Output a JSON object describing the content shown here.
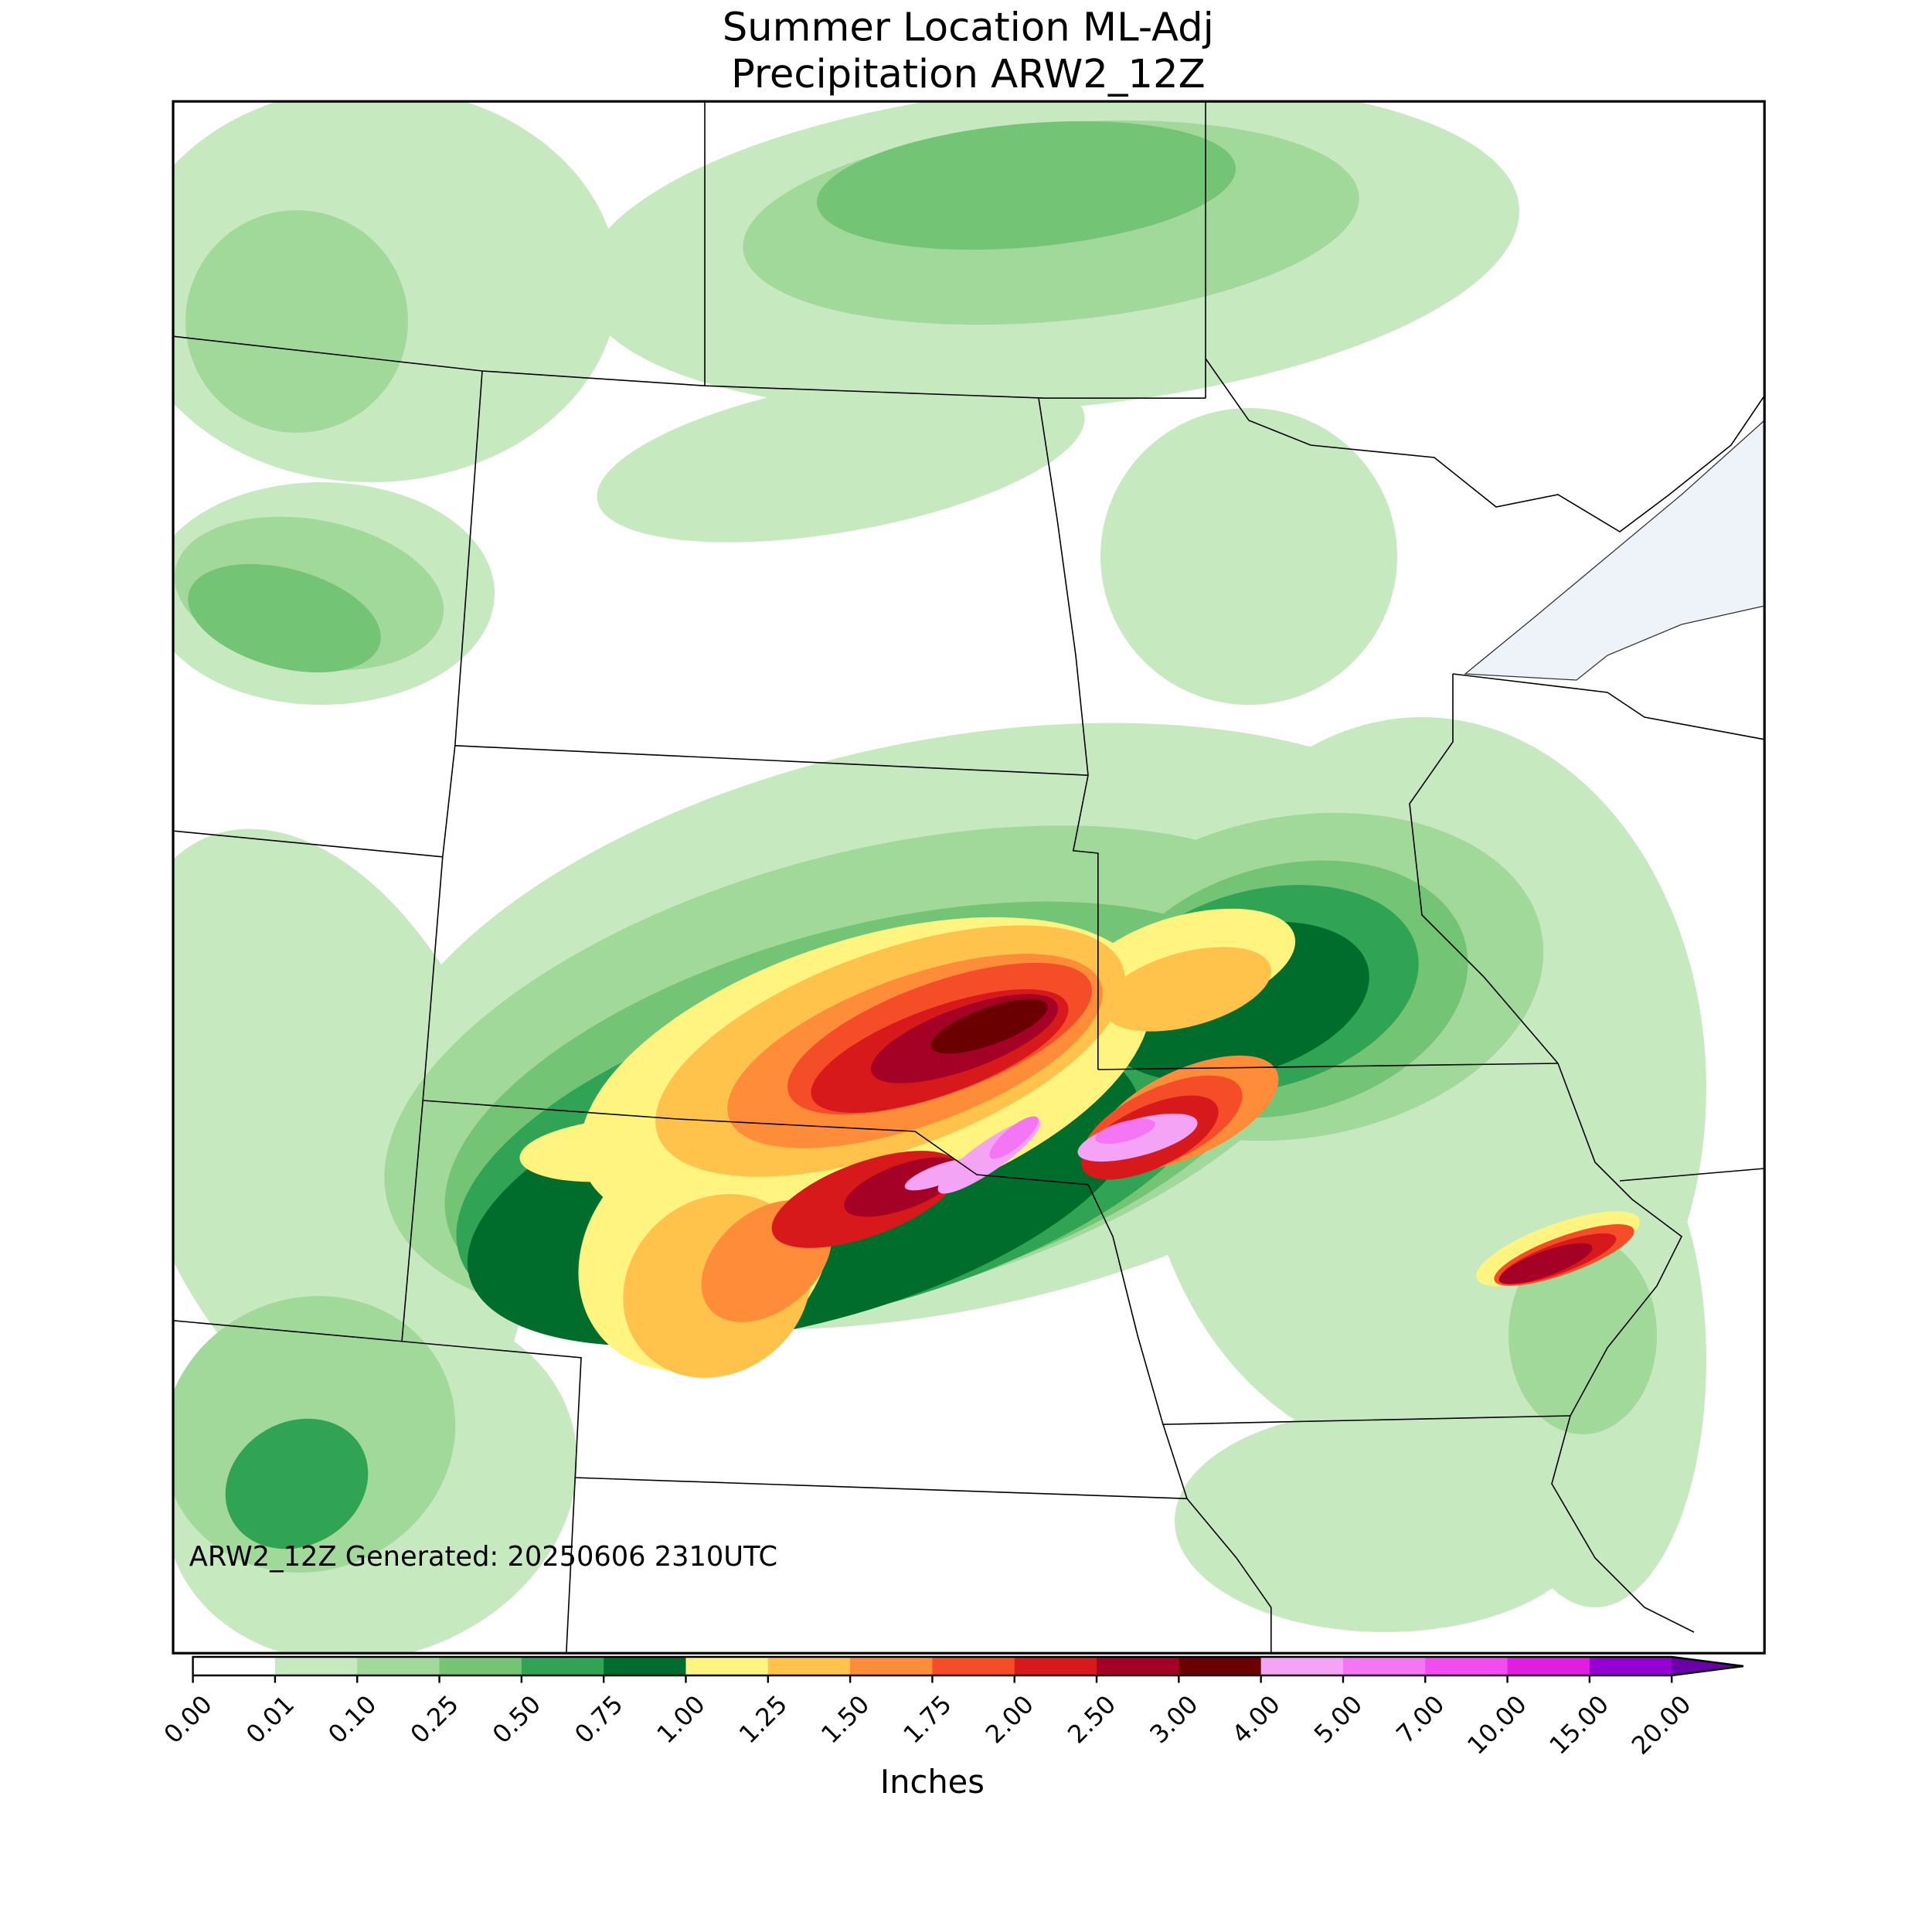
{
  "title": [
    "Summer Location ML-Adj",
    "Precipitation ARW2_12Z"
  ],
  "annotation": "ARW2_12Z Generated: 20250606 2310UTC",
  "colorbar": {
    "label": "Inches",
    "levels": [
      {
        "value": 0,
        "label": "0.00"
      },
      {
        "value": 0.01,
        "label": "0.01"
      },
      {
        "value": 0.1,
        "label": "0.10"
      },
      {
        "value": 0.25,
        "label": "0.25"
      },
      {
        "value": 0.5,
        "label": "0.50"
      },
      {
        "value": 0.75,
        "label": "0.75"
      },
      {
        "value": 1,
        "label": "1.00"
      },
      {
        "value": 1.25,
        "label": "1.25"
      },
      {
        "value": 1.5,
        "label": "1.50"
      },
      {
        "value": 1.75,
        "label": "1.75"
      },
      {
        "value": 2,
        "label": "2.00"
      },
      {
        "value": 2.5,
        "label": "2.50"
      },
      {
        "value": 3,
        "label": "3.00"
      },
      {
        "value": 4,
        "label": "4.00"
      },
      {
        "value": 5,
        "label": "5.00"
      },
      {
        "value": 7,
        "label": "7.00"
      },
      {
        "value": 10,
        "label": "10.00"
      },
      {
        "value": 15,
        "label": "15.00"
      },
      {
        "value": 20,
        "label": "20.00"
      }
    ],
    "colors": [
      "#ffffff",
      "#c7e9c0",
      "#a1d99b",
      "#74c476",
      "#31a354",
      "#006d2c",
      "#fff480",
      "#ffc24a",
      "#ff8c38",
      "#f54d28",
      "#d7191c",
      "#a50026",
      "#6b0000",
      "#f5a3f5",
      "#f576f5",
      "#f04cf0",
      "#e01ee0",
      "#9400d3"
    ],
    "extend_color": "#6a00a8"
  }
}
